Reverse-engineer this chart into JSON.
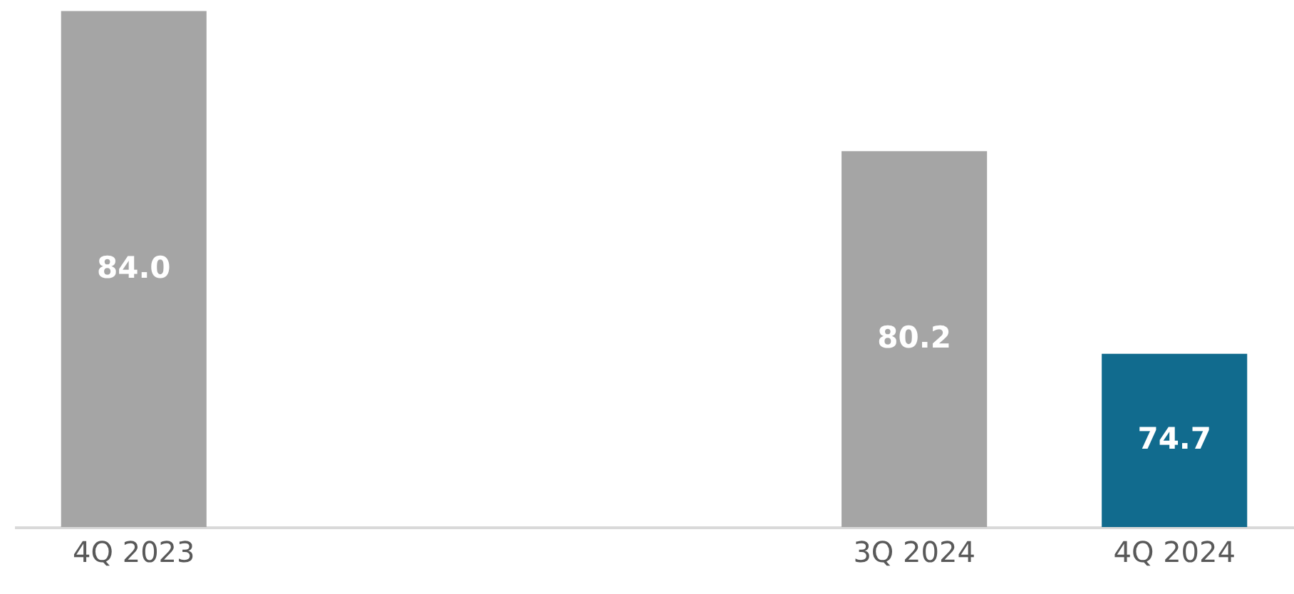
{
  "chart_data": {
    "type": "bar",
    "categories": [
      "4Q 2023",
      null,
      null,
      "3Q 2024",
      "4Q 2024"
    ],
    "values": [
      84.0,
      null,
      null,
      80.2,
      74.7
    ],
    "value_labels": [
      "84.0",
      null,
      null,
      "80.2",
      "74.7"
    ],
    "colors": [
      "#a5a5a5",
      null,
      null,
      "#a5a5a5",
      "#116b8e"
    ],
    "ylim": [
      70,
      84.3
    ]
  }
}
